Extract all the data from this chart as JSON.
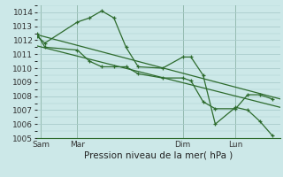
{
  "background_color": "#cce8e8",
  "grid_color": "#aacccc",
  "line_color": "#2d6b2d",
  "xlabel": "Pression niveau de la mer( hPa )",
  "ylim": [
    1005,
    1014.5
  ],
  "yticks": [
    1005,
    1006,
    1007,
    1008,
    1009,
    1010,
    1011,
    1012,
    1013,
    1014
  ],
  "xlim": [
    0,
    60
  ],
  "day_labels": [
    "Sam",
    "Mar",
    "Dim",
    "Lun"
  ],
  "day_positions": [
    1,
    10,
    36,
    49
  ],
  "vline_positions": [
    1,
    10,
    36,
    49
  ],
  "line1_x": [
    0,
    2,
    10,
    13,
    16,
    19,
    22,
    25,
    31,
    36,
    38,
    41,
    44,
    49,
    52,
    55,
    58
  ],
  "line1_y": [
    1012.3,
    1011.8,
    1013.3,
    1013.6,
    1014.1,
    1013.6,
    1011.5,
    1010.1,
    1010.0,
    1010.8,
    1010.8,
    1009.5,
    1006.0,
    1007.2,
    1007.0,
    1006.2,
    1005.2
  ],
  "line2_x": [
    0,
    2,
    10,
    13,
    16,
    19,
    22,
    25,
    31,
    36,
    38,
    41,
    44,
    49,
    52,
    55,
    58
  ],
  "line2_y": [
    1012.5,
    1011.5,
    1011.3,
    1010.5,
    1010.1,
    1010.1,
    1010.1,
    1009.6,
    1009.3,
    1009.3,
    1009.1,
    1007.6,
    1007.1,
    1007.1,
    1008.1,
    1008.1,
    1007.8
  ],
  "line3_x": [
    0,
    60
  ],
  "line3_y": [
    1012.4,
    1007.8
  ],
  "line4_x": [
    0,
    60
  ],
  "line4_y": [
    1011.6,
    1007.2
  ],
  "xlabel_fontsize": 7.5,
  "tick_fontsize": 6.5,
  "lw": 0.9
}
